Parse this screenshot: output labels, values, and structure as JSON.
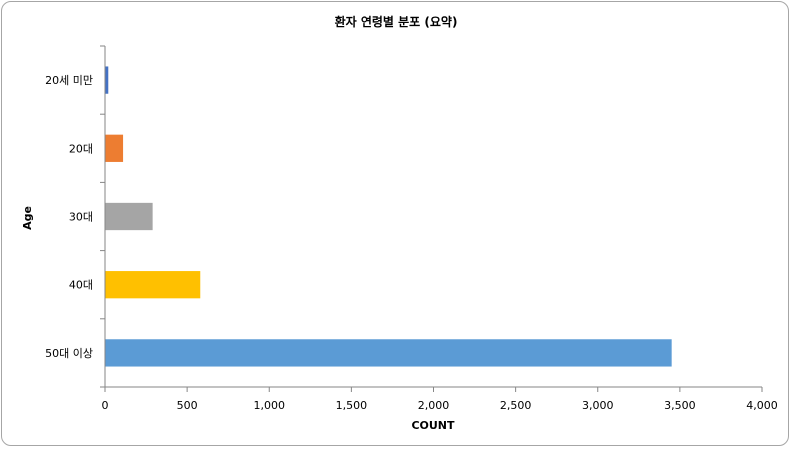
{
  "chart_data": {
    "type": "bar",
    "orientation": "horizontal",
    "title": "환자 연령별 분포 (요약)",
    "xlabel": "COUNT",
    "ylabel": "Age",
    "categories": [
      "20세 미만",
      "20대",
      "30대",
      "40대",
      "50대 이상"
    ],
    "values": [
      20,
      110,
      290,
      580,
      3450
    ],
    "colors": [
      "#4472c4",
      "#ed7d31",
      "#a5a5a5",
      "#ffc000",
      "#5b9bd5"
    ],
    "xlim": [
      0,
      4000
    ],
    "xticks": [
      0,
      500,
      1000,
      1500,
      2000,
      2500,
      3000,
      3500,
      4000
    ],
    "xtick_labels": [
      "0",
      "500",
      "1,000",
      "1,500",
      "2,000",
      "2,500",
      "3,000",
      "3,500",
      "4,000"
    ],
    "grid": false,
    "legend": "none"
  }
}
